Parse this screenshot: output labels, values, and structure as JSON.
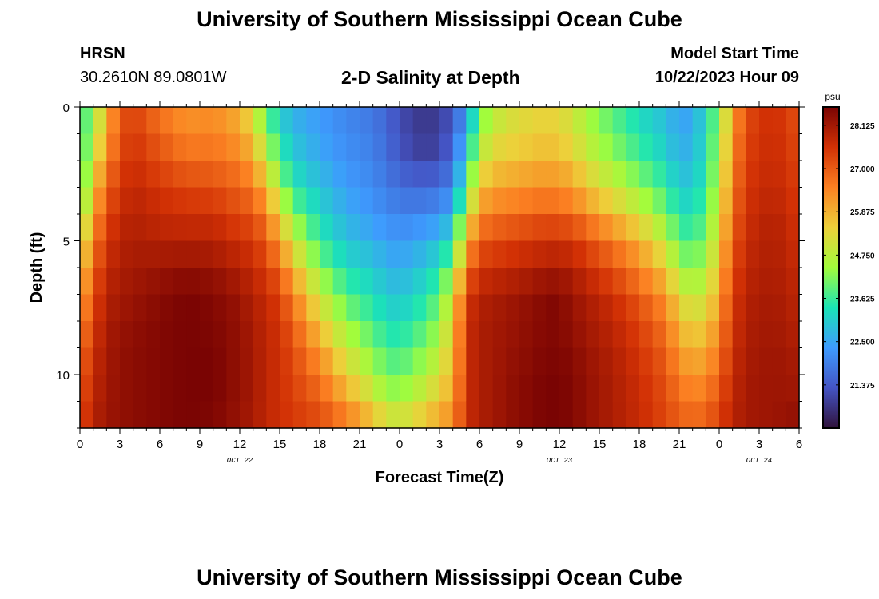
{
  "header": {
    "title": "University of Southern Mississippi Ocean Cube",
    "station_name": "HRSN",
    "station_coords": "30.2610N  89.0801W",
    "chart_title": "2-D Salinity at Depth",
    "model_start_label": "Model Start Time",
    "model_start_time": "10/22/2023 Hour 09"
  },
  "footer": {
    "title": "University of Southern Mississippi Ocean Cube"
  },
  "chart_data": {
    "type": "heatmap",
    "title": "2-D Salinity at Depth",
    "xlabel": "Forecast Time(Z)",
    "ylabel": "Depth (ft)",
    "x_range_hours": [
      0,
      54
    ],
    "y_range_ft": [
      0,
      12
    ],
    "x_ticks": [
      {
        "hour": 0,
        "label": "0"
      },
      {
        "hour": 3,
        "label": "3"
      },
      {
        "hour": 6,
        "label": "6"
      },
      {
        "hour": 9,
        "label": "9"
      },
      {
        "hour": 12,
        "label": "12"
      },
      {
        "hour": 15,
        "label": "15"
      },
      {
        "hour": 18,
        "label": "18"
      },
      {
        "hour": 21,
        "label": "21"
      },
      {
        "hour": 24,
        "label": "0"
      },
      {
        "hour": 27,
        "label": "3"
      },
      {
        "hour": 30,
        "label": "6"
      },
      {
        "hour": 33,
        "label": "9"
      },
      {
        "hour": 36,
        "label": "12"
      },
      {
        "hour": 39,
        "label": "15"
      },
      {
        "hour": 42,
        "label": "18"
      },
      {
        "hour": 45,
        "label": "21"
      },
      {
        "hour": 48,
        "label": "0"
      },
      {
        "hour": 51,
        "label": "3"
      },
      {
        "hour": 54,
        "label": "6"
      }
    ],
    "y_ticks": [
      {
        "depth": 0,
        "label": "0"
      },
      {
        "depth": 5,
        "label": "5"
      },
      {
        "depth": 10,
        "label": "10"
      }
    ],
    "date_labels": [
      {
        "hour": 12,
        "label": "OCT 22"
      },
      {
        "hour": 36,
        "label": "OCT 23"
      },
      {
        "hour": 51,
        "label": "OCT 24"
      }
    ],
    "colorbar": {
      "unit": "psu",
      "min": 20.25,
      "max": 28.6,
      "ticks": [
        "28.125",
        "27.000",
        "25.875",
        "24.750",
        "23.625",
        "22.500",
        "21.375"
      ]
    },
    "colormap": [
      "#30123b",
      "#4454c4",
      "#3e9bfe",
      "#1ae4b6",
      "#a2fc3c",
      "#edd03a",
      "#fb8022",
      "#d23105",
      "#7a0403"
    ],
    "depth_levels_ft": [
      0,
      1,
      2,
      3,
      4,
      5,
      6,
      7,
      8,
      9,
      10,
      11,
      12
    ],
    "control_hours": [
      0,
      1,
      2,
      3,
      4,
      6,
      8,
      10,
      12,
      13,
      14,
      15,
      16,
      18,
      20,
      22,
      23,
      24,
      25,
      26,
      27,
      28,
      29,
      30,
      31,
      32,
      33,
      34,
      35,
      36,
      37,
      38,
      40,
      42,
      44,
      45,
      46,
      47,
      48,
      49,
      50,
      52,
      54
    ],
    "profiles_psu": [
      [
        23.6,
        23.5,
        23.4,
        23.6,
        24.0,
        24.8,
        25.3,
        25.8,
        26.2,
        26.6,
        26.9,
        27.1,
        27.3
      ],
      [
        24.2,
        24.5,
        25.0,
        25.5,
        26.0,
        26.5,
        26.9,
        27.2,
        27.4,
        27.6,
        27.7,
        27.8,
        27.9
      ],
      [
        25.8,
        26.0,
        26.4,
        26.9,
        27.2,
        27.5,
        27.7,
        27.9,
        28.0,
        28.1,
        28.1,
        28.2,
        28.2
      ],
      [
        27.0,
        27.1,
        27.3,
        27.5,
        27.7,
        27.9,
        28.0,
        28.1,
        28.2,
        28.3,
        28.3,
        28.3,
        28.3
      ],
      [
        27.3,
        27.5,
        27.6,
        27.8,
        27.9,
        28.0,
        28.1,
        28.2,
        28.3,
        28.4,
        28.4,
        28.4,
        28.4
      ],
      [
        26.6,
        26.9,
        27.2,
        27.5,
        27.7,
        27.9,
        28.2,
        28.4,
        28.5,
        28.5,
        28.5,
        28.5,
        28.5
      ],
      [
        26.2,
        26.4,
        26.8,
        27.3,
        27.6,
        27.9,
        28.3,
        28.6,
        28.6,
        28.6,
        28.6,
        28.6,
        28.6
      ],
      [
        26.3,
        26.5,
        26.8,
        27.2,
        27.6,
        27.9,
        28.2,
        28.5,
        28.5,
        28.6,
        28.6,
        28.6,
        28.5
      ],
      [
        25.8,
        26.1,
        26.5,
        26.9,
        27.2,
        27.6,
        27.9,
        28.2,
        28.3,
        28.3,
        28.3,
        28.3,
        28.2
      ],
      [
        25.0,
        25.5,
        26.0,
        26.6,
        27.1,
        27.5,
        27.7,
        27.9,
        28.0,
        28.1,
        28.1,
        28.1,
        28.0
      ],
      [
        23.8,
        24.3,
        25.0,
        25.8,
        26.5,
        27.0,
        27.4,
        27.7,
        27.8,
        27.8,
        27.8,
        27.8,
        27.8
      ],
      [
        23.0,
        23.3,
        23.8,
        24.5,
        25.3,
        26.1,
        26.8,
        27.3,
        27.5,
        27.6,
        27.6,
        27.6,
        27.6
      ],
      [
        22.6,
        22.8,
        23.1,
        23.5,
        24.2,
        25.0,
        25.8,
        26.5,
        26.9,
        27.2,
        27.3,
        27.4,
        27.5
      ],
      [
        22.3,
        22.4,
        22.6,
        22.9,
        23.2,
        23.6,
        24.2,
        24.9,
        25.5,
        26.1,
        26.6,
        27.0,
        27.3
      ],
      [
        22.0,
        22.1,
        22.2,
        22.4,
        22.6,
        22.9,
        23.3,
        23.8,
        24.3,
        24.9,
        25.5,
        26.1,
        26.8
      ],
      [
        21.8,
        21.9,
        22.0,
        22.1,
        22.3,
        22.6,
        23.0,
        23.3,
        23.7,
        24.1,
        24.6,
        25.2,
        26.0
      ],
      [
        21.5,
        21.6,
        21.7,
        21.9,
        22.1,
        22.4,
        22.7,
        23.0,
        23.3,
        23.7,
        24.1,
        24.6,
        25.5
      ],
      [
        21.2,
        21.2,
        21.4,
        21.7,
        22.0,
        22.3,
        22.6,
        22.9,
        23.2,
        23.6,
        24.0,
        24.5,
        25.4
      ],
      [
        21.0,
        20.9,
        21.2,
        21.6,
        22.0,
        22.4,
        22.8,
        23.1,
        23.5,
        23.9,
        24.3,
        24.8,
        25.6
      ],
      [
        20.9,
        20.8,
        21.1,
        21.6,
        22.1,
        22.6,
        23.0,
        23.4,
        23.8,
        24.2,
        24.7,
        25.2,
        25.9
      ],
      [
        21.0,
        20.9,
        21.2,
        21.7,
        22.2,
        22.8,
        23.4,
        23.9,
        24.3,
        24.7,
        25.1,
        25.6,
        26.2
      ],
      [
        21.3,
        21.4,
        21.7,
        22.0,
        22.6,
        23.4,
        24.2,
        25.0,
        25.4,
        25.6,
        25.8,
        26.1,
        26.5
      ],
      [
        22.2,
        22.6,
        23.2,
        23.8,
        24.8,
        25.8,
        26.6,
        27.4,
        27.6,
        27.6,
        27.6,
        27.6,
        27.6
      ],
      [
        23.8,
        24.3,
        24.9,
        25.6,
        26.3,
        27.0,
        27.5,
        27.9,
        28.0,
        28.0,
        28.0,
        28.0,
        28.0
      ],
      [
        24.6,
        25.0,
        25.5,
        26.0,
        26.6,
        27.2,
        27.6,
        28.0,
        28.1,
        28.1,
        28.1,
        28.1,
        28.1
      ],
      [
        25.0,
        25.2,
        25.6,
        26.1,
        26.7,
        27.3,
        27.7,
        28.1,
        28.2,
        28.2,
        28.3,
        28.3,
        28.3
      ],
      [
        25.2,
        25.3,
        25.7,
        26.2,
        26.8,
        27.4,
        27.8,
        28.2,
        28.3,
        28.3,
        28.4,
        28.4,
        28.4
      ],
      [
        25.3,
        25.4,
        25.8,
        26.3,
        26.9,
        27.5,
        27.9,
        28.3,
        28.4,
        28.4,
        28.5,
        28.5,
        28.5
      ],
      [
        25.4,
        25.5,
        25.9,
        26.4,
        27.0,
        27.6,
        28.0,
        28.5,
        28.5,
        28.5,
        28.6,
        28.6,
        28.6
      ],
      [
        25.3,
        25.4,
        25.8,
        26.3,
        26.9,
        27.6,
        28.0,
        28.5,
        28.5,
        28.5,
        28.6,
        28.6,
        28.6
      ],
      [
        25.0,
        25.1,
        25.6,
        26.1,
        26.8,
        27.5,
        27.9,
        28.2,
        28.3,
        28.4,
        28.5,
        28.5,
        28.5
      ],
      [
        24.5,
        24.6,
        25.1,
        25.6,
        26.4,
        27.2,
        27.6,
        28.0,
        28.1,
        28.2,
        28.3,
        28.3,
        28.3
      ],
      [
        23.8,
        24.0,
        24.4,
        25.0,
        25.7,
        26.6,
        27.1,
        27.6,
        27.8,
        27.9,
        28.0,
        28.0,
        28.0
      ],
      [
        23.2,
        23.4,
        23.8,
        24.3,
        25.0,
        25.9,
        26.4,
        27.0,
        27.3,
        27.5,
        27.6,
        27.7,
        27.7
      ],
      [
        22.8,
        22.9,
        23.2,
        23.6,
        24.1,
        24.8,
        25.5,
        26.2,
        26.6,
        26.9,
        27.1,
        27.2,
        27.3
      ],
      [
        22.4,
        22.5,
        22.7,
        23.0,
        23.4,
        23.9,
        24.5,
        25.2,
        25.7,
        26.1,
        26.5,
        26.8,
        27.0
      ],
      [
        22.5,
        22.6,
        22.8,
        23.0,
        23.3,
        23.7,
        24.2,
        24.8,
        25.3,
        25.8,
        26.2,
        26.6,
        26.9
      ],
      [
        23.2,
        23.3,
        23.4,
        23.6,
        23.9,
        24.2,
        24.6,
        25.0,
        25.5,
        25.9,
        26.3,
        26.7,
        27.0
      ],
      [
        24.2,
        24.4,
        24.6,
        24.8,
        25.1,
        25.4,
        25.7,
        26.0,
        26.3,
        26.6,
        26.9,
        27.2,
        27.4
      ],
      [
        26.0,
        26.2,
        26.4,
        26.6,
        26.8,
        27.0,
        27.2,
        27.4,
        27.5,
        27.6,
        27.7,
        27.8,
        27.9
      ],
      [
        27.2,
        27.3,
        27.4,
        27.5,
        27.6,
        27.7,
        27.8,
        27.9,
        28.0,
        28.0,
        28.1,
        28.1,
        28.1
      ],
      [
        27.6,
        27.7,
        27.7,
        27.8,
        27.9,
        28.0,
        28.0,
        28.1,
        28.1,
        28.2,
        28.2,
        28.2,
        28.2
      ],
      [
        27.1,
        27.2,
        27.3,
        27.4,
        27.5,
        27.6,
        27.7,
        27.8,
        27.9,
        28.0,
        28.1,
        28.2,
        28.4
      ]
    ]
  }
}
